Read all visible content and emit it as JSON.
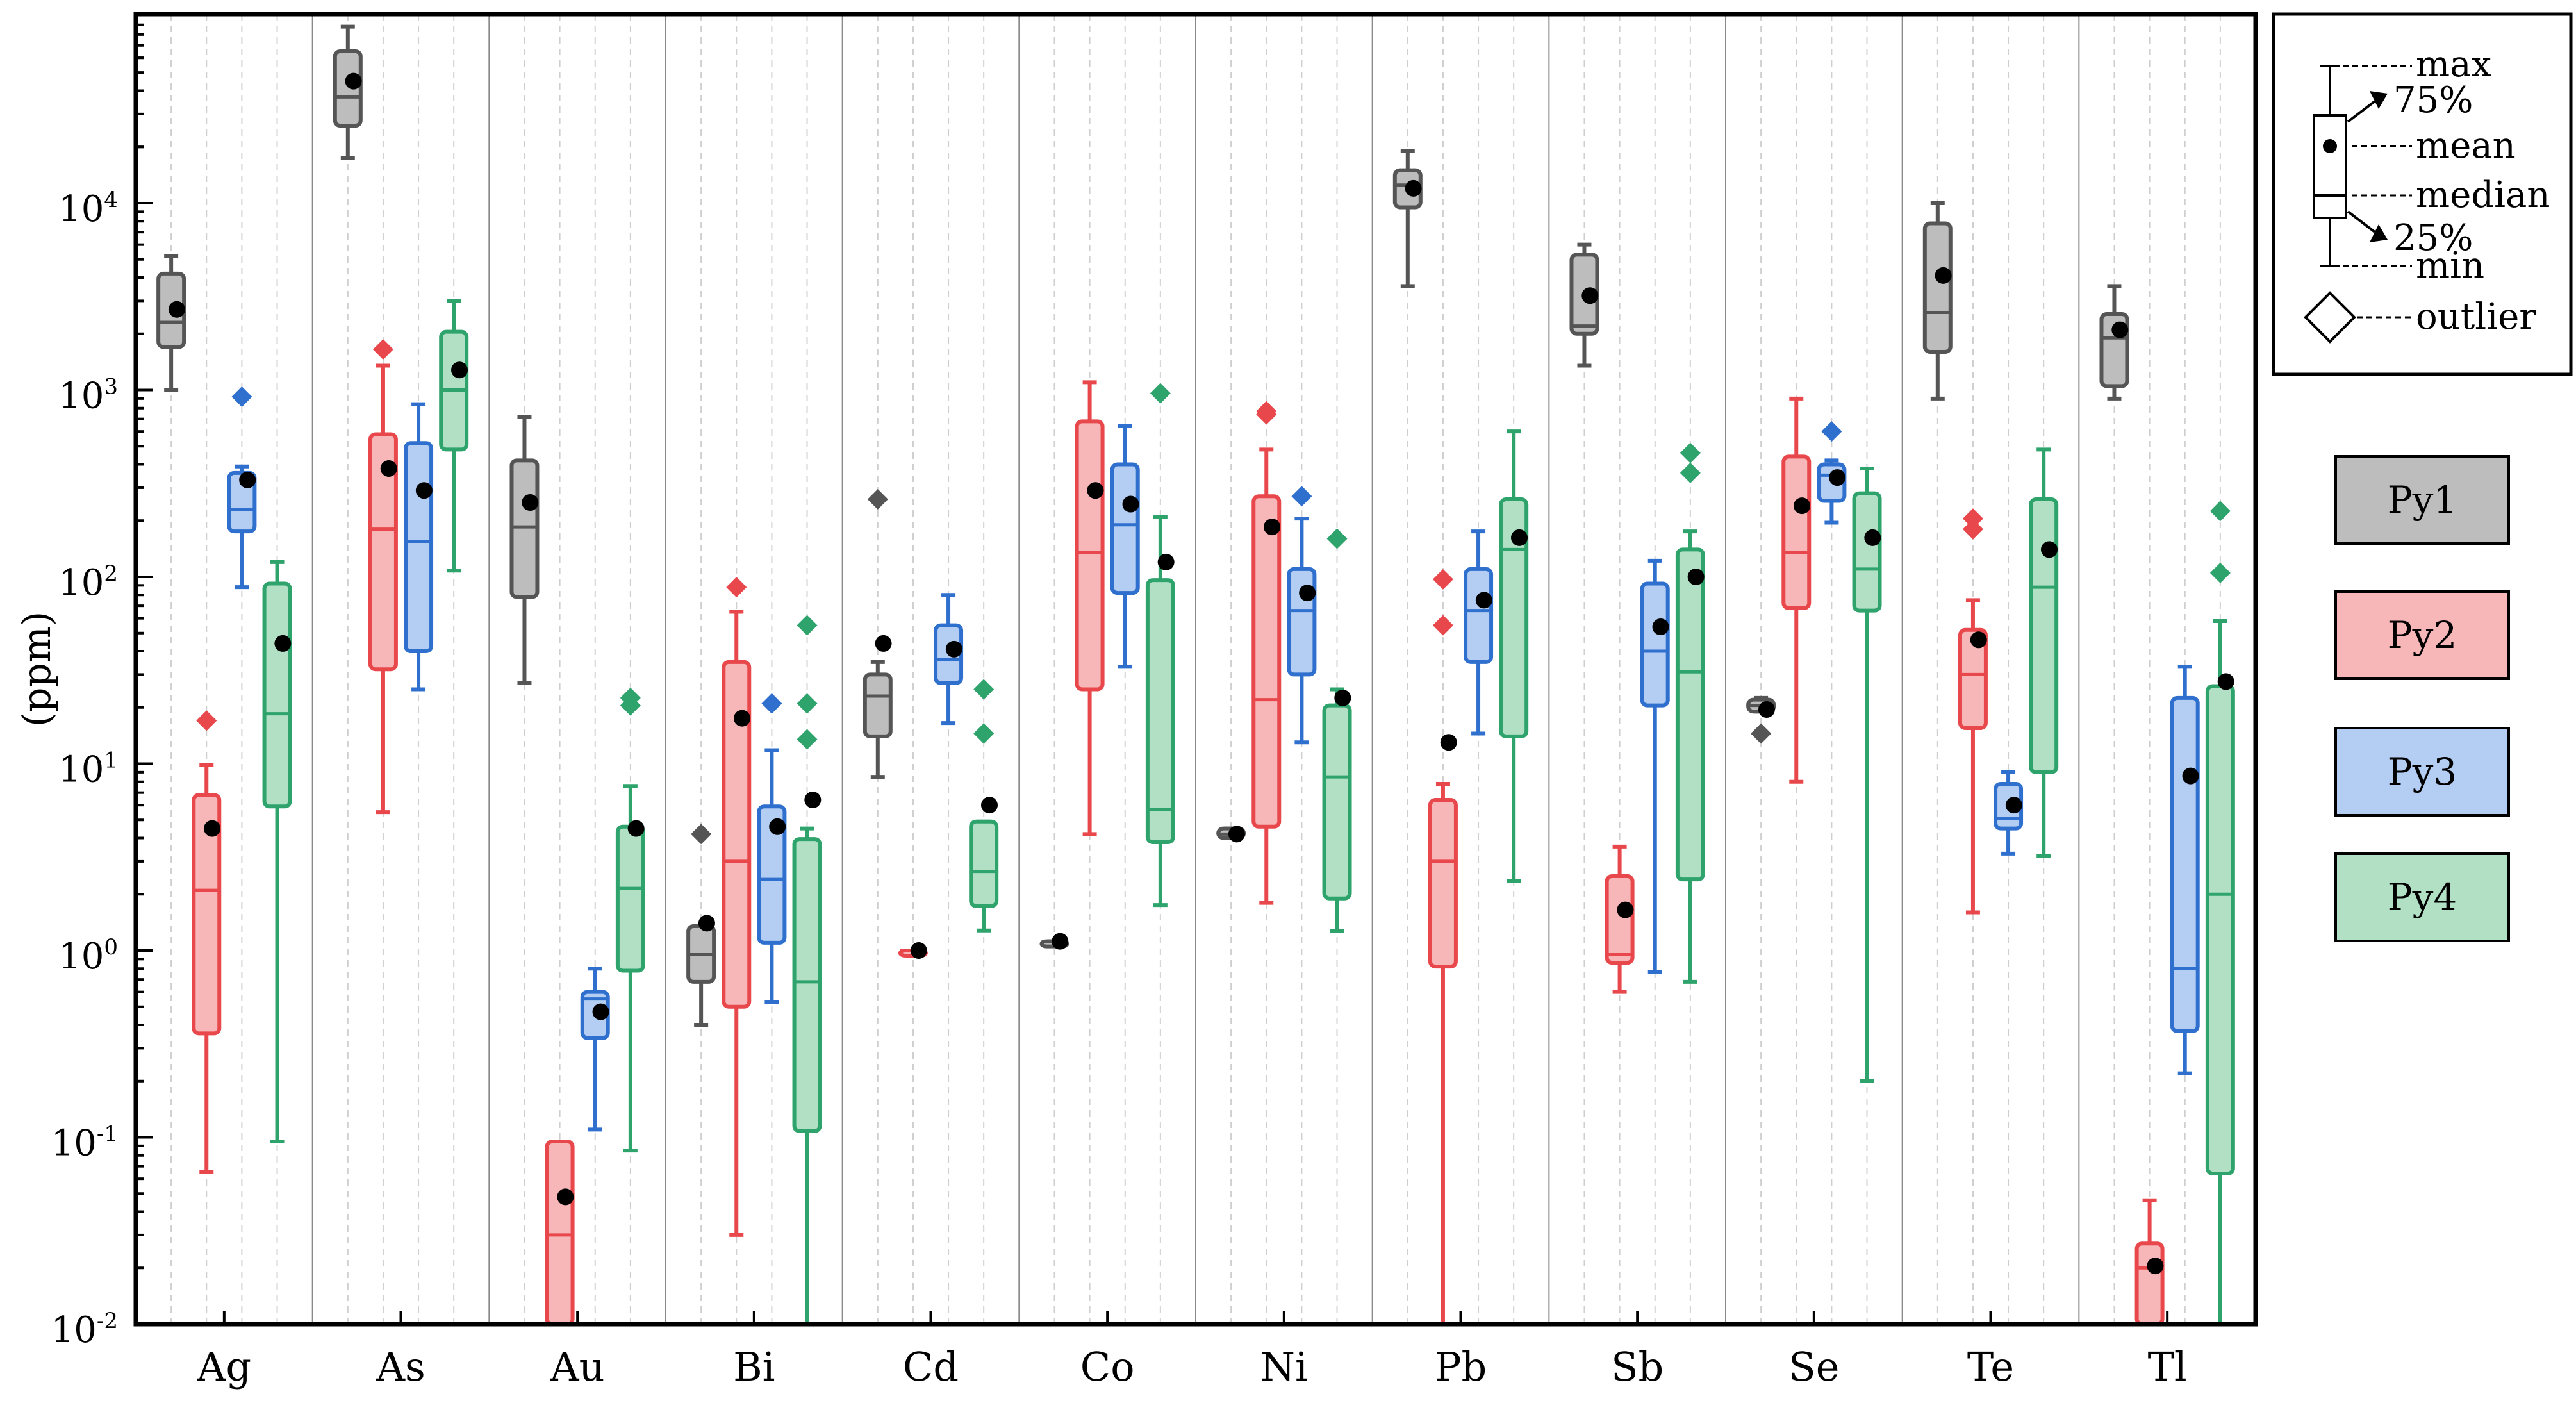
{
  "chart_data": {
    "type": "boxplot",
    "yscale": "log",
    "ylabel": "(ppm)",
    "ylim": [
      0.01,
      100000
    ],
    "yticks": [
      {
        "value": 0.01,
        "label": "10",
        "exp": "-2"
      },
      {
        "value": 0.1,
        "label": "10",
        "exp": "-1"
      },
      {
        "value": 1,
        "label": "10",
        "exp": "0"
      },
      {
        "value": 10,
        "label": "10",
        "exp": "1"
      },
      {
        "value": 100,
        "label": "10",
        "exp": "2"
      },
      {
        "value": 1000,
        "label": "10",
        "exp": "3"
      },
      {
        "value": 10000,
        "label": "10",
        "exp": "4"
      }
    ],
    "categories": [
      "Ag",
      "As",
      "Au",
      "Bi",
      "Cd",
      "Co",
      "Ni",
      "Pb",
      "Sb",
      "Se",
      "Te",
      "Tl"
    ],
    "series": [
      {
        "name": "Py1",
        "color": "#555555",
        "fill": "#bdbdbd",
        "values": [
          {
            "cat": "Ag",
            "min": 1000,
            "q1": 1700,
            "median": 2300,
            "q3": 4200,
            "max": 5200,
            "mean": 2700,
            "outliers": []
          },
          {
            "cat": "As",
            "min": 17500,
            "q1": 26000,
            "median": 37000,
            "q3": 65000,
            "max": 88000,
            "mean": 45000,
            "outliers": []
          },
          {
            "cat": "Au",
            "min": 27,
            "q1": 78,
            "median": 185,
            "q3": 420,
            "max": 720,
            "mean": 250,
            "outliers": []
          },
          {
            "cat": "Bi",
            "min": 0.4,
            "q1": 0.68,
            "median": 0.95,
            "q3": 1.35,
            "max": 1.35,
            "mean": 1.4,
            "outliers": [
              4.2
            ]
          },
          {
            "cat": "Cd",
            "min": 8.5,
            "q1": 14,
            "median": 23,
            "q3": 30,
            "max": 35,
            "mean": 44,
            "outliers": [
              260
            ]
          },
          {
            "cat": "Co",
            "min": 1.12,
            "q1": 1.12,
            "median": 1.12,
            "q3": 1.12,
            "max": 1.12,
            "mean": 1.12,
            "outliers": []
          },
          {
            "cat": "Ni",
            "min": 4.0,
            "q1": 4.0,
            "median": 4.2,
            "q3": 4.5,
            "max": 4.5,
            "mean": 4.2,
            "outliers": []
          },
          {
            "cat": "Pb",
            "min": 3600,
            "q1": 9500,
            "median": 12500,
            "q3": 15000,
            "max": 19000,
            "mean": 12000,
            "outliers": []
          },
          {
            "cat": "Sb",
            "min": 1350,
            "q1": 2000,
            "median": 2200,
            "q3": 5300,
            "max": 6000,
            "mean": 3200,
            "outliers": []
          },
          {
            "cat": "Se",
            "min": 19,
            "q1": 19,
            "median": 20.5,
            "q3": 22,
            "max": 22.5,
            "mean": 19.5,
            "outliers": [
              14.5
            ]
          },
          {
            "cat": "Te",
            "min": 900,
            "q1": 1600,
            "median": 2600,
            "q3": 7800,
            "max": 10000,
            "mean": 4100,
            "outliers": []
          },
          {
            "cat": "Tl",
            "min": 900,
            "q1": 1050,
            "median": 1900,
            "q3": 2550,
            "max": 3600,
            "mean": 2100,
            "outliers": []
          }
        ]
      },
      {
        "name": "Py2",
        "color": "#e8474b",
        "fill": "#f7b7b8",
        "values": [
          {
            "cat": "Ag",
            "min": 0.065,
            "q1": 0.36,
            "median": 2.1,
            "q3": 6.8,
            "max": 9.8,
            "mean": 4.5,
            "outliers": [
              17
            ]
          },
          {
            "cat": "As",
            "min": 5.5,
            "q1": 32,
            "median": 180,
            "q3": 580,
            "max": 1350,
            "mean": 380,
            "outliers": [
              1650
            ]
          },
          {
            "cat": "Au",
            "min": 0.01,
            "q1": 0.01,
            "median": 0.03,
            "q3": 0.095,
            "max": 0.095,
            "mean": 0.048,
            "outliers": []
          },
          {
            "cat": "Bi",
            "min": 0.03,
            "q1": 0.5,
            "median": 3.0,
            "q3": 35,
            "max": 65,
            "mean": 17.5,
            "outliers": [
              88
            ]
          },
          {
            "cat": "Cd",
            "min": 1.0,
            "q1": 1.0,
            "median": 1.0,
            "q3": 1.0,
            "max": 1.0,
            "mean": 1.0,
            "outliers": []
          },
          {
            "cat": "Co",
            "min": 4.2,
            "q1": 25,
            "median": 135,
            "q3": 680,
            "max": 1100,
            "mean": 290,
            "outliers": []
          },
          {
            "cat": "Ni",
            "min": 1.8,
            "q1": 4.6,
            "median": 22,
            "q3": 270,
            "max": 480,
            "mean": 185,
            "outliers": [
              740,
              770
            ]
          },
          {
            "cat": "Pb",
            "min": 0.01,
            "q1": 0.82,
            "median": 3.0,
            "q3": 6.4,
            "max": 7.8,
            "mean": 13,
            "outliers": [
              55,
              97
            ]
          },
          {
            "cat": "Sb",
            "min": 0.6,
            "q1": 0.86,
            "median": 0.95,
            "q3": 2.5,
            "max": 3.6,
            "mean": 1.65,
            "outliers": []
          },
          {
            "cat": "Se",
            "min": 8,
            "q1": 68,
            "median": 135,
            "q3": 440,
            "max": 900,
            "mean": 240,
            "outliers": []
          },
          {
            "cat": "Te",
            "min": 1.6,
            "q1": 15.5,
            "median": 30,
            "q3": 52,
            "max": 75,
            "mean": 46,
            "outliers": [
              180,
              205
            ]
          },
          {
            "cat": "Tl",
            "min": 0.01,
            "q1": 0.01,
            "median": 0.02,
            "q3": 0.027,
            "max": 0.046,
            "mean": 0.0205,
            "outliers": []
          }
        ]
      },
      {
        "name": "Py3",
        "color": "#2f6fce",
        "fill": "#b3cef2",
        "values": [
          {
            "cat": "Ag",
            "min": 88,
            "q1": 175,
            "median": 230,
            "q3": 360,
            "max": 390,
            "mean": 330,
            "outliers": [
              920
            ]
          },
          {
            "cat": "As",
            "min": 25,
            "q1": 40,
            "median": 155,
            "q3": 520,
            "max": 840,
            "mean": 290,
            "outliers": []
          },
          {
            "cat": "Au",
            "min": 0.11,
            "q1": 0.34,
            "median": 0.55,
            "q3": 0.6,
            "max": 0.8,
            "mean": 0.47,
            "outliers": []
          },
          {
            "cat": "Bi",
            "min": 0.53,
            "q1": 1.1,
            "median": 2.4,
            "q3": 5.9,
            "max": 11.8,
            "mean": 4.6,
            "outliers": [
              21
            ]
          },
          {
            "cat": "Cd",
            "min": 16.5,
            "q1": 27,
            "median": 36,
            "q3": 55,
            "max": 80,
            "mean": 41,
            "outliers": []
          },
          {
            "cat": "Co",
            "min": 33,
            "q1": 82,
            "median": 190,
            "q3": 400,
            "max": 640,
            "mean": 245,
            "outliers": []
          },
          {
            "cat": "Ni",
            "min": 13,
            "q1": 30,
            "median": 66,
            "q3": 110,
            "max": 205,
            "mean": 82,
            "outliers": [
              270
            ]
          },
          {
            "cat": "Pb",
            "min": 14.5,
            "q1": 35,
            "median": 66,
            "q3": 110,
            "max": 175,
            "mean": 75,
            "outliers": []
          },
          {
            "cat": "Sb",
            "min": 0.77,
            "q1": 20.5,
            "median": 40,
            "q3": 92,
            "max": 122,
            "mean": 54,
            "outliers": []
          },
          {
            "cat": "Se",
            "min": 195,
            "q1": 255,
            "median": 350,
            "q3": 400,
            "max": 420,
            "mean": 340,
            "outliers": [
              600
            ]
          },
          {
            "cat": "Te",
            "min": 3.3,
            "q1": 4.5,
            "median": 5.1,
            "q3": 7.8,
            "max": 9.0,
            "mean": 6.0,
            "outliers": []
          },
          {
            "cat": "Tl",
            "min": 0.22,
            "q1": 0.37,
            "median": 0.8,
            "q3": 22.5,
            "max": 33,
            "mean": 8.6,
            "outliers": []
          }
        ]
      },
      {
        "name": "Py4",
        "color": "#2ea36b",
        "fill": "#b1e0c5",
        "values": [
          {
            "cat": "Ag",
            "min": 0.095,
            "q1": 5.9,
            "median": 18.5,
            "q3": 92,
            "max": 120,
            "mean": 44,
            "outliers": []
          },
          {
            "cat": "As",
            "min": 108,
            "q1": 480,
            "median": 1000,
            "q3": 2050,
            "max": 3000,
            "mean": 1280,
            "outliers": []
          },
          {
            "cat": "Au",
            "min": 0.085,
            "q1": 0.78,
            "median": 2.15,
            "q3": 4.6,
            "max": 7.6,
            "mean": 4.5,
            "outliers": [
              20.5,
              22.5
            ]
          },
          {
            "cat": "Bi",
            "min": 0.01,
            "q1": 0.108,
            "median": 0.68,
            "q3": 3.95,
            "max": 4.5,
            "mean": 6.4,
            "outliers": [
              13.5,
              21,
              55
            ]
          },
          {
            "cat": "Cd",
            "min": 1.28,
            "q1": 1.73,
            "median": 2.65,
            "q3": 4.9,
            "max": 4.9,
            "mean": 6.0,
            "outliers": [
              14.5,
              25
            ]
          },
          {
            "cat": "Co",
            "min": 1.75,
            "q1": 3.8,
            "median": 5.7,
            "q3": 96,
            "max": 210,
            "mean": 120,
            "outliers": [
              960
            ]
          },
          {
            "cat": "Ni",
            "min": 1.27,
            "q1": 1.9,
            "median": 8.5,
            "q3": 20.5,
            "max": 25,
            "mean": 22.5,
            "outliers": [
              160
            ]
          },
          {
            "cat": "Pb",
            "min": 2.35,
            "q1": 14,
            "median": 140,
            "q3": 260,
            "max": 600,
            "mean": 162,
            "outliers": []
          },
          {
            "cat": "Sb",
            "min": 0.68,
            "q1": 2.4,
            "median": 31,
            "q3": 140,
            "max": 175,
            "mean": 100,
            "outliers": [
              360,
              460
            ]
          },
          {
            "cat": "Se",
            "min": 0.2,
            "q1": 66,
            "median": 110,
            "q3": 280,
            "max": 380,
            "mean": 162,
            "outliers": []
          },
          {
            "cat": "Te",
            "min": 3.2,
            "q1": 9.0,
            "median": 88,
            "q3": 260,
            "max": 480,
            "mean": 140,
            "outliers": []
          },
          {
            "cat": "Tl",
            "min": 0.01,
            "q1": 0.064,
            "median": 2.0,
            "q3": 26,
            "max": 58,
            "mean": 27.5,
            "outliers": [
              105,
              225
            ]
          }
        ]
      }
    ],
    "key": {
      "labels": {
        "max": "max",
        "q3": "75%",
        "mean": "mean",
        "median": "median",
        "q1": "25%",
        "min": "min",
        "outlier": "outlier"
      }
    },
    "legend": {
      "position": "right",
      "items": [
        "Py1",
        "Py2",
        "Py3",
        "Py4"
      ]
    }
  }
}
